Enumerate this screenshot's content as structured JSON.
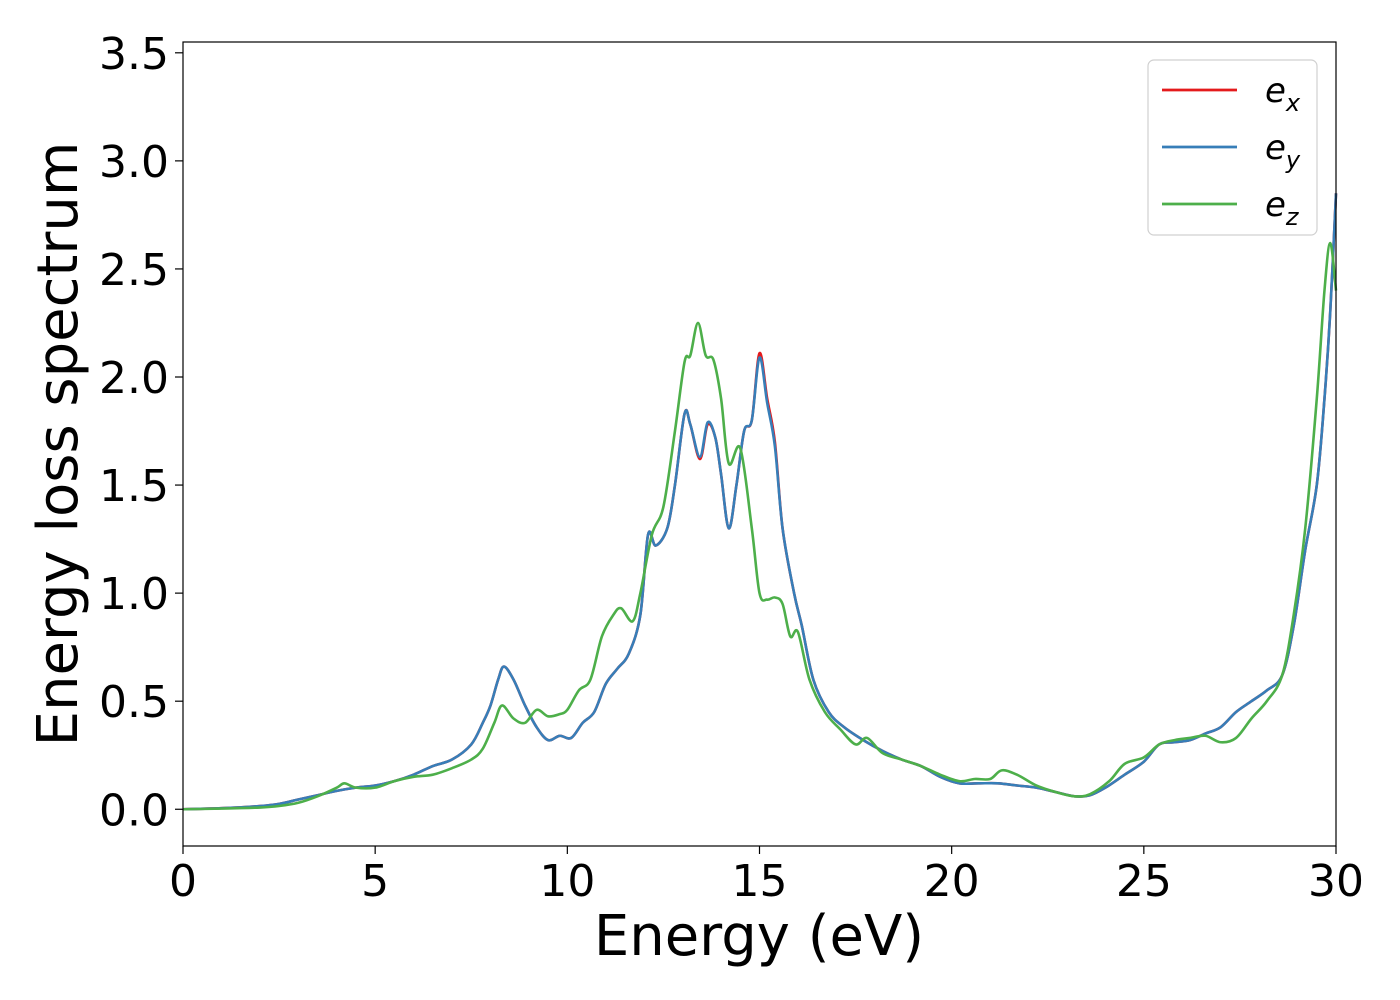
{
  "chart_data": {
    "type": "line",
    "xlabel": "Energy (eV)",
    "ylabel": "Energy loss spectrum",
    "xlim": [
      0,
      30
    ],
    "ylim": [
      -0.17,
      3.55
    ],
    "xticks": [
      0,
      5,
      10,
      15,
      20,
      25,
      30
    ],
    "yticks": [
      0.0,
      0.5,
      1.0,
      1.5,
      2.0,
      2.5,
      3.0,
      3.5
    ],
    "xtick_labels": [
      "0",
      "5",
      "10",
      "15",
      "20",
      "25",
      "30"
    ],
    "ytick_labels": [
      "0.0",
      "0.5",
      "1.0",
      "1.5",
      "2.0",
      "2.5",
      "3.0",
      "3.5"
    ],
    "grid": false,
    "legend_position": "upper right",
    "legend": [
      "e",
      "e",
      "e"
    ],
    "legend_subscripts": [
      "x",
      "y",
      "z"
    ],
    "series": [
      {
        "name": "e_x",
        "color": "#e41a1c",
        "points": [
          [
            0,
            0
          ],
          [
            1,
            0.005
          ],
          [
            2,
            0.015
          ],
          [
            2.5,
            0.025
          ],
          [
            3,
            0.045
          ],
          [
            3.5,
            0.065
          ],
          [
            4,
            0.085
          ],
          [
            4.5,
            0.1
          ],
          [
            5,
            0.11
          ],
          [
            5.5,
            0.13
          ],
          [
            6,
            0.16
          ],
          [
            6.5,
            0.2
          ],
          [
            7,
            0.23
          ],
          [
            7.5,
            0.3
          ],
          [
            7.8,
            0.4
          ],
          [
            8,
            0.48
          ],
          [
            8.2,
            0.6
          ],
          [
            8.35,
            0.66
          ],
          [
            8.6,
            0.6
          ],
          [
            8.9,
            0.48
          ],
          [
            9.2,
            0.38
          ],
          [
            9.5,
            0.32
          ],
          [
            9.8,
            0.34
          ],
          [
            10.1,
            0.33
          ],
          [
            10.4,
            0.4
          ],
          [
            10.7,
            0.45
          ],
          [
            11,
            0.58
          ],
          [
            11.3,
            0.65
          ],
          [
            11.6,
            0.72
          ],
          [
            11.9,
            0.9
          ],
          [
            12.1,
            1.27
          ],
          [
            12.3,
            1.22
          ],
          [
            12.6,
            1.3
          ],
          [
            12.8,
            1.5
          ],
          [
            13.05,
            1.83
          ],
          [
            13.2,
            1.78
          ],
          [
            13.45,
            1.62
          ],
          [
            13.65,
            1.78
          ],
          [
            13.85,
            1.72
          ],
          [
            14,
            1.55
          ],
          [
            14.2,
            1.3
          ],
          [
            14.4,
            1.5
          ],
          [
            14.6,
            1.75
          ],
          [
            14.8,
            1.8
          ],
          [
            15.0,
            2.11
          ],
          [
            15.2,
            1.9
          ],
          [
            15.4,
            1.7
          ],
          [
            15.6,
            1.3
          ],
          [
            15.9,
            1.0
          ],
          [
            16.1,
            0.85
          ],
          [
            16.4,
            0.6
          ],
          [
            16.8,
            0.45
          ],
          [
            17.2,
            0.38
          ],
          [
            17.7,
            0.32
          ],
          [
            18.2,
            0.27
          ],
          [
            18.7,
            0.23
          ],
          [
            19.2,
            0.2
          ],
          [
            19.7,
            0.15
          ],
          [
            20.2,
            0.12
          ],
          [
            20.7,
            0.12
          ],
          [
            21.2,
            0.12
          ],
          [
            21.7,
            0.11
          ],
          [
            22.2,
            0.1
          ],
          [
            22.7,
            0.08
          ],
          [
            23.2,
            0.06
          ],
          [
            23.6,
            0.065
          ],
          [
            24,
            0.1
          ],
          [
            24.5,
            0.16
          ],
          [
            25,
            0.22
          ],
          [
            25.4,
            0.3
          ],
          [
            25.8,
            0.31
          ],
          [
            26.2,
            0.32
          ],
          [
            26.6,
            0.35
          ],
          [
            27,
            0.38
          ],
          [
            27.4,
            0.45
          ],
          [
            27.8,
            0.5
          ],
          [
            28.2,
            0.55
          ],
          [
            28.6,
            0.62
          ],
          [
            28.9,
            0.85
          ],
          [
            29.2,
            1.2
          ],
          [
            29.5,
            1.5
          ],
          [
            29.7,
            1.9
          ],
          [
            29.85,
            2.3
          ],
          [
            30,
            2.85
          ]
        ]
      },
      {
        "name": "e_y",
        "color": "#377eb8",
        "points": [
          [
            0,
            0
          ],
          [
            1,
            0.005
          ],
          [
            2,
            0.015
          ],
          [
            2.5,
            0.025
          ],
          [
            3,
            0.045
          ],
          [
            3.5,
            0.065
          ],
          [
            4,
            0.085
          ],
          [
            4.5,
            0.1
          ],
          [
            5,
            0.11
          ],
          [
            5.5,
            0.13
          ],
          [
            6,
            0.16
          ],
          [
            6.5,
            0.2
          ],
          [
            7,
            0.23
          ],
          [
            7.5,
            0.3
          ],
          [
            7.8,
            0.4
          ],
          [
            8,
            0.48
          ],
          [
            8.2,
            0.6
          ],
          [
            8.35,
            0.66
          ],
          [
            8.6,
            0.6
          ],
          [
            8.9,
            0.48
          ],
          [
            9.2,
            0.38
          ],
          [
            9.5,
            0.32
          ],
          [
            9.8,
            0.34
          ],
          [
            10.1,
            0.33
          ],
          [
            10.4,
            0.4
          ],
          [
            10.7,
            0.45
          ],
          [
            11,
            0.58
          ],
          [
            11.3,
            0.65
          ],
          [
            11.6,
            0.72
          ],
          [
            11.9,
            0.9
          ],
          [
            12.1,
            1.27
          ],
          [
            12.3,
            1.22
          ],
          [
            12.6,
            1.3
          ],
          [
            12.8,
            1.5
          ],
          [
            13.05,
            1.83
          ],
          [
            13.2,
            1.78
          ],
          [
            13.45,
            1.63
          ],
          [
            13.65,
            1.79
          ],
          [
            13.85,
            1.72
          ],
          [
            14,
            1.55
          ],
          [
            14.2,
            1.3
          ],
          [
            14.4,
            1.5
          ],
          [
            14.6,
            1.75
          ],
          [
            14.8,
            1.8
          ],
          [
            15.0,
            2.09
          ],
          [
            15.2,
            1.88
          ],
          [
            15.4,
            1.68
          ],
          [
            15.6,
            1.3
          ],
          [
            15.9,
            1.0
          ],
          [
            16.1,
            0.85
          ],
          [
            16.4,
            0.6
          ],
          [
            16.8,
            0.45
          ],
          [
            17.2,
            0.38
          ],
          [
            17.7,
            0.32
          ],
          [
            18.2,
            0.27
          ],
          [
            18.7,
            0.23
          ],
          [
            19.2,
            0.2
          ],
          [
            19.7,
            0.15
          ],
          [
            20.2,
            0.12
          ],
          [
            20.7,
            0.12
          ],
          [
            21.2,
            0.12
          ],
          [
            21.7,
            0.11
          ],
          [
            22.2,
            0.1
          ],
          [
            22.7,
            0.08
          ],
          [
            23.2,
            0.06
          ],
          [
            23.6,
            0.065
          ],
          [
            24,
            0.1
          ],
          [
            24.5,
            0.16
          ],
          [
            25,
            0.22
          ],
          [
            25.4,
            0.3
          ],
          [
            25.8,
            0.31
          ],
          [
            26.2,
            0.32
          ],
          [
            26.6,
            0.35
          ],
          [
            27,
            0.38
          ],
          [
            27.4,
            0.45
          ],
          [
            27.8,
            0.5
          ],
          [
            28.2,
            0.55
          ],
          [
            28.6,
            0.62
          ],
          [
            28.9,
            0.85
          ],
          [
            29.2,
            1.2
          ],
          [
            29.5,
            1.5
          ],
          [
            29.7,
            1.9
          ],
          [
            29.85,
            2.3
          ],
          [
            30,
            2.85
          ]
        ]
      },
      {
        "name": "e_z",
        "color": "#4daf4a",
        "points": [
          [
            0,
            0
          ],
          [
            1,
            0.003
          ],
          [
            2,
            0.008
          ],
          [
            2.5,
            0.015
          ],
          [
            3,
            0.03
          ],
          [
            3.5,
            0.06
          ],
          [
            4,
            0.1
          ],
          [
            4.2,
            0.12
          ],
          [
            4.5,
            0.1
          ],
          [
            5,
            0.1
          ],
          [
            5.5,
            0.13
          ],
          [
            6,
            0.15
          ],
          [
            6.5,
            0.16
          ],
          [
            7,
            0.19
          ],
          [
            7.5,
            0.23
          ],
          [
            7.8,
            0.28
          ],
          [
            8.1,
            0.4
          ],
          [
            8.3,
            0.48
          ],
          [
            8.6,
            0.42
          ],
          [
            8.9,
            0.4
          ],
          [
            9.2,
            0.46
          ],
          [
            9.5,
            0.43
          ],
          [
            9.8,
            0.44
          ],
          [
            10,
            0.46
          ],
          [
            10.3,
            0.55
          ],
          [
            10.6,
            0.6
          ],
          [
            10.9,
            0.8
          ],
          [
            11.2,
            0.9
          ],
          [
            11.4,
            0.93
          ],
          [
            11.7,
            0.87
          ],
          [
            11.9,
            1.0
          ],
          [
            12.2,
            1.27
          ],
          [
            12.5,
            1.4
          ],
          [
            12.8,
            1.75
          ],
          [
            13.05,
            2.07
          ],
          [
            13.2,
            2.1
          ],
          [
            13.4,
            2.25
          ],
          [
            13.6,
            2.1
          ],
          [
            13.8,
            2.08
          ],
          [
            14.0,
            1.9
          ],
          [
            14.2,
            1.6
          ],
          [
            14.5,
            1.67
          ],
          [
            14.8,
            1.3
          ],
          [
            15.0,
            1.0
          ],
          [
            15.2,
            0.97
          ],
          [
            15.4,
            0.98
          ],
          [
            15.6,
            0.95
          ],
          [
            15.8,
            0.8
          ],
          [
            16.0,
            0.82
          ],
          [
            16.3,
            0.6
          ],
          [
            16.7,
            0.45
          ],
          [
            17.1,
            0.37
          ],
          [
            17.5,
            0.3
          ],
          [
            17.8,
            0.33
          ],
          [
            18.2,
            0.26
          ],
          [
            18.7,
            0.23
          ],
          [
            19.2,
            0.2
          ],
          [
            19.7,
            0.16
          ],
          [
            20.2,
            0.13
          ],
          [
            20.6,
            0.14
          ],
          [
            21,
            0.14
          ],
          [
            21.3,
            0.18
          ],
          [
            21.7,
            0.16
          ],
          [
            22.2,
            0.11
          ],
          [
            22.7,
            0.08
          ],
          [
            23.2,
            0.06
          ],
          [
            23.6,
            0.07
          ],
          [
            24.1,
            0.13
          ],
          [
            24.5,
            0.21
          ],
          [
            25,
            0.24
          ],
          [
            25.4,
            0.3
          ],
          [
            25.8,
            0.32
          ],
          [
            26.2,
            0.33
          ],
          [
            26.6,
            0.34
          ],
          [
            27,
            0.31
          ],
          [
            27.4,
            0.33
          ],
          [
            27.8,
            0.42
          ],
          [
            28.2,
            0.5
          ],
          [
            28.6,
            0.62
          ],
          [
            28.9,
            0.9
          ],
          [
            29.2,
            1.3
          ],
          [
            29.5,
            1.9
          ],
          [
            29.7,
            2.4
          ],
          [
            29.85,
            2.62
          ],
          [
            30,
            2.4
          ]
        ]
      }
    ]
  }
}
